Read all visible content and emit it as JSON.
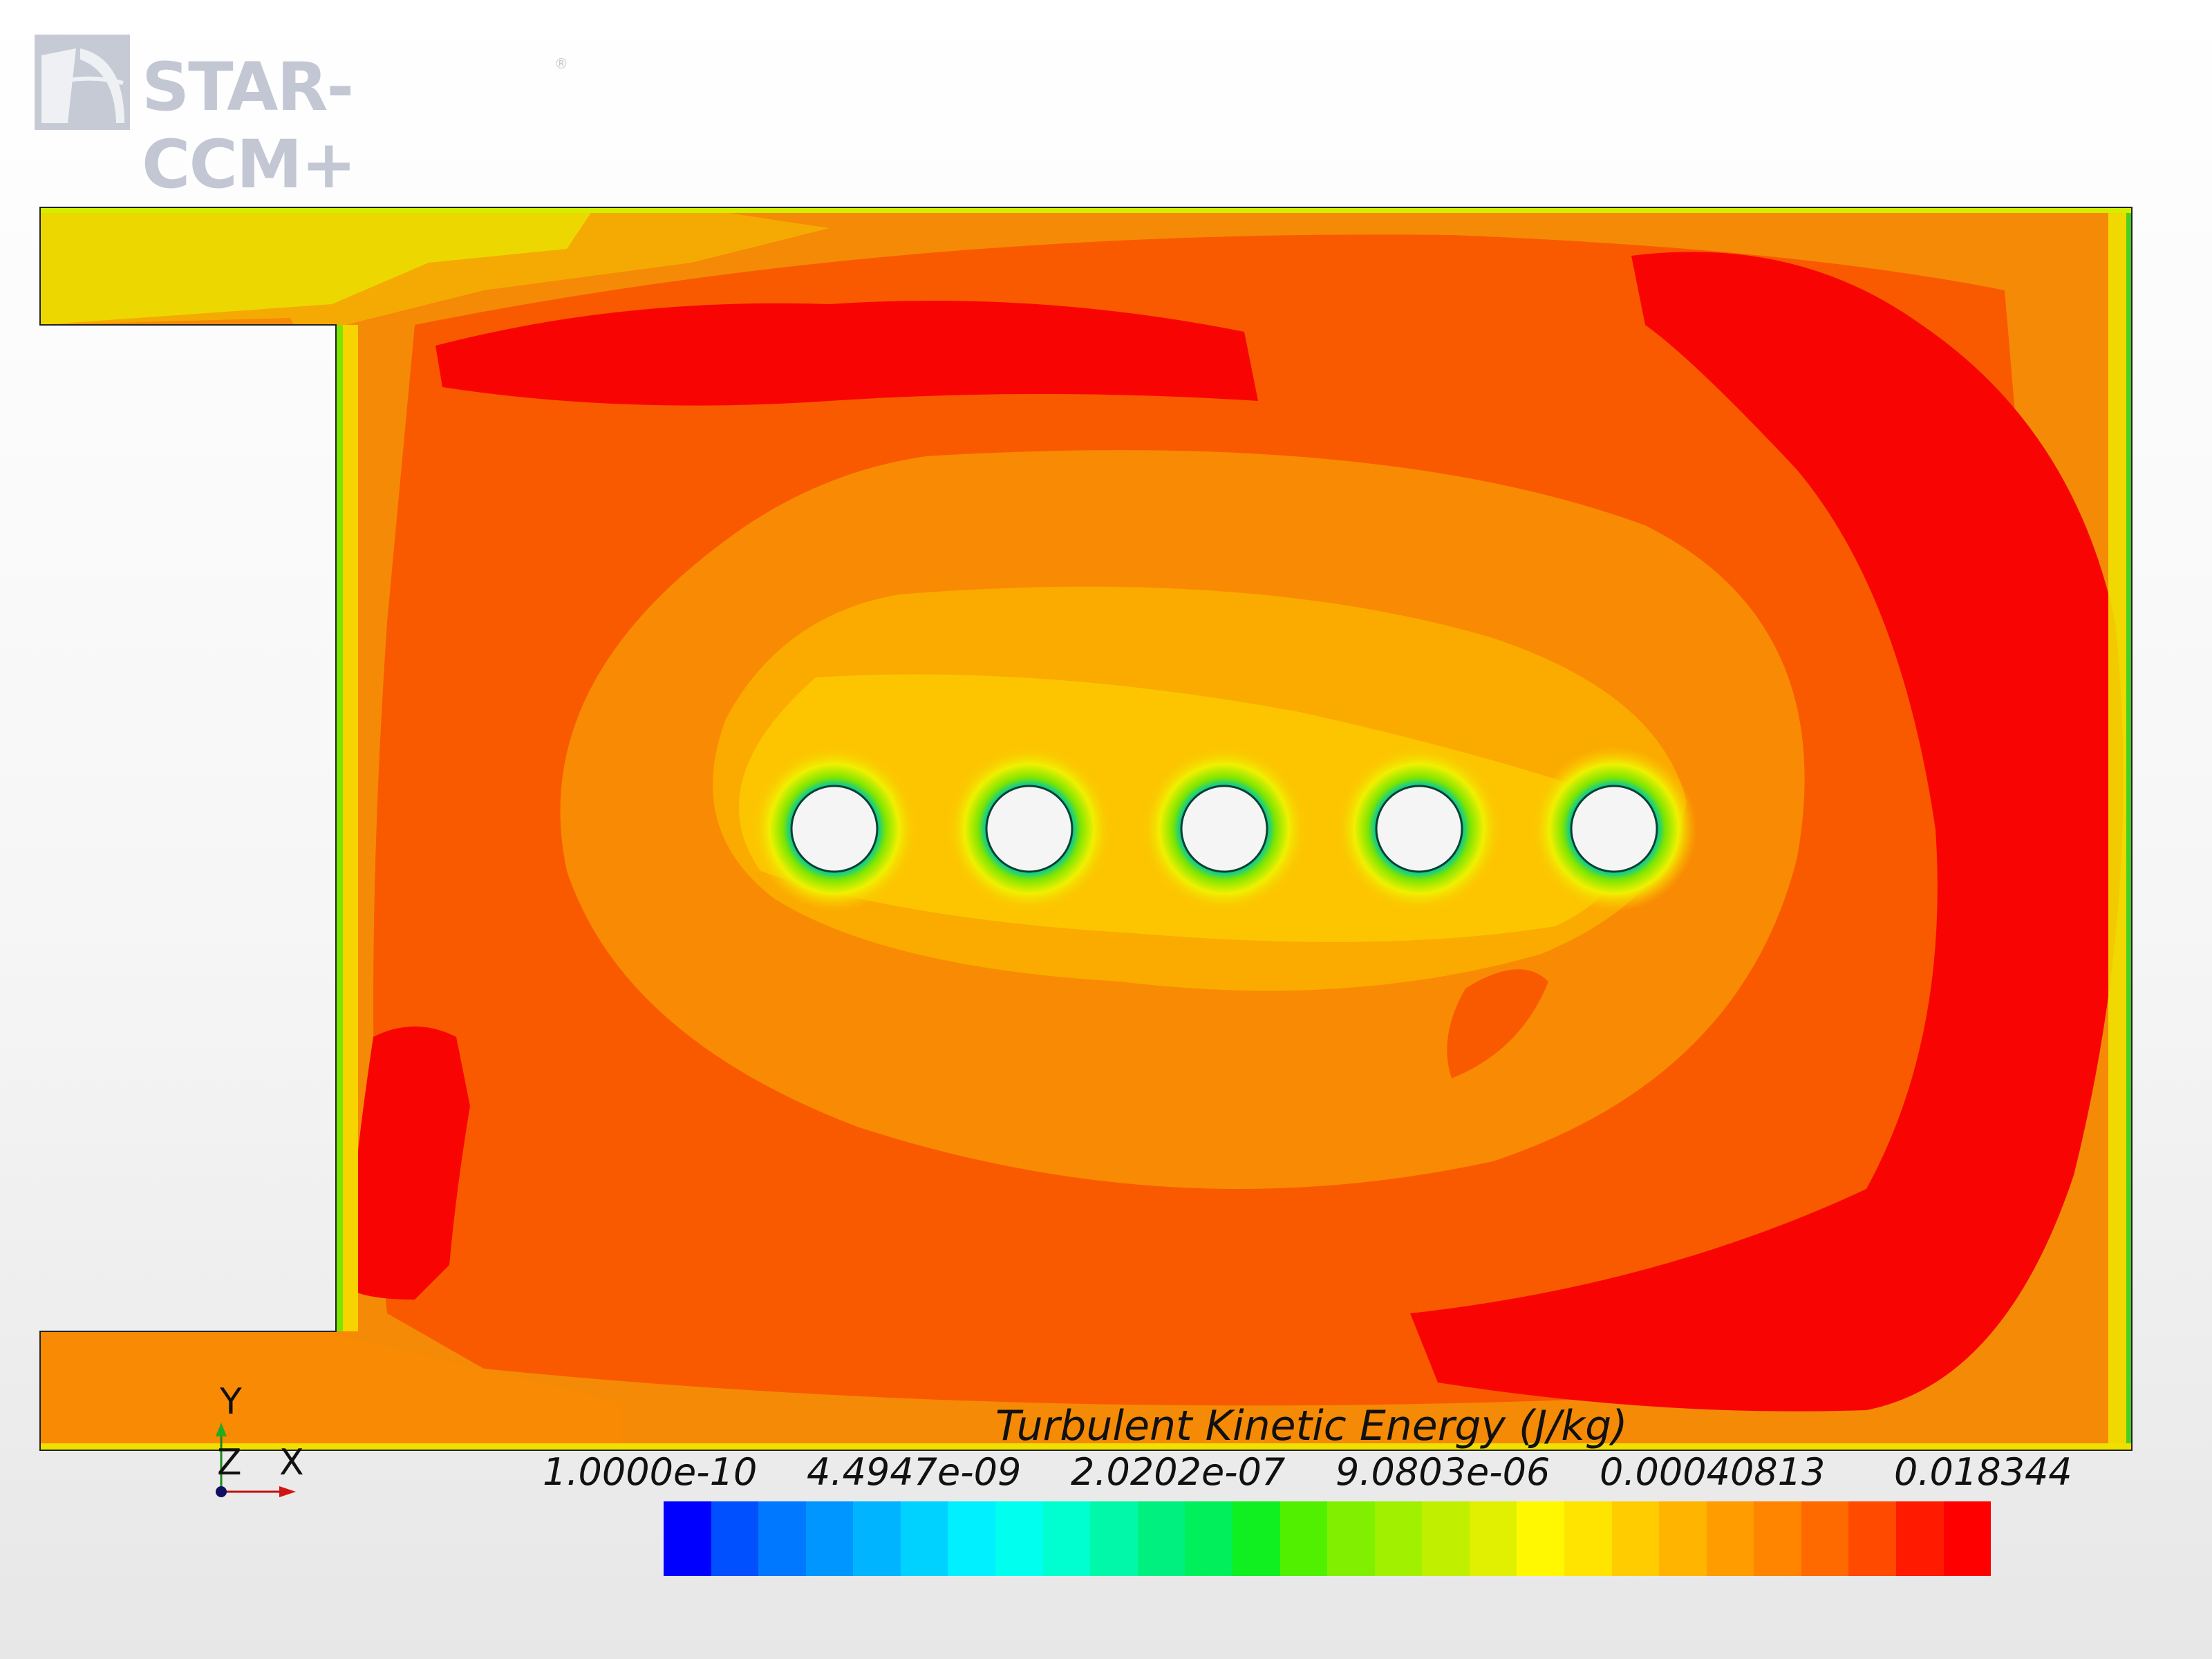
{
  "app": {
    "logo_text": "STAR-CCM+",
    "logo_reg": "®"
  },
  "view": {
    "field": "Turbulent Kinetic Energy",
    "domain_bg": "#f58a07",
    "regions": {
      "low_orange": "#f98a03",
      "mid_orange": "#f95a00",
      "high_red": "#f80503",
      "core_yellow": "#fcc500",
      "inlet_yellow": "#e5f000",
      "wall_green": "#48d020"
    },
    "cylinders": {
      "count": 5,
      "fill": "#f5f5f5"
    }
  },
  "legend": {
    "title": "Turbulent Kinetic Energy (J/kg)",
    "scale": "log",
    "ticks": [
      "1.0000e-10",
      "4.4947e-09",
      "2.0202e-07",
      "9.0803e-06",
      "0.00040813",
      "0.018344"
    ],
    "colors": [
      "#0000ff",
      "#0050ff",
      "#0078ff",
      "#0096ff",
      "#00b4ff",
      "#00d2ff",
      "#00f0ff",
      "#00ffee",
      "#00ffd0",
      "#00f8a8",
      "#00f080",
      "#00ef5a",
      "#10f020",
      "#50f000",
      "#80f000",
      "#a0f000",
      "#c0f000",
      "#e0f000",
      "#fff800",
      "#ffe400",
      "#ffcc00",
      "#ffb400",
      "#ff9c00",
      "#ff8400",
      "#ff6a00",
      "#ff4a00",
      "#ff1a00",
      "#ff0000"
    ]
  },
  "axes": {
    "y": "Y",
    "z": "Z",
    "x": "X"
  }
}
